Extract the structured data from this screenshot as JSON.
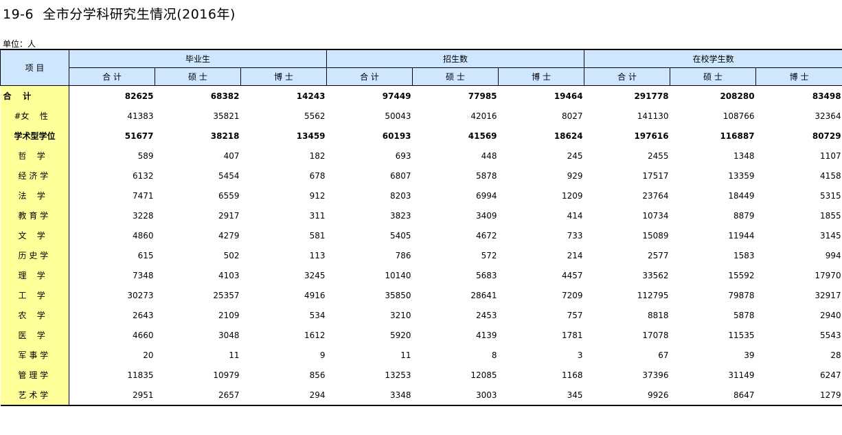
{
  "title": "19-6  全市分学科研究生情况(2016年)",
  "unit": "单位：人",
  "header": {
    "item": "项  目",
    "groups": [
      "毕业生",
      "招生数",
      "在校学生数"
    ],
    "subs": [
      "合 计",
      "硕 士",
      "博 士"
    ]
  },
  "rows": [
    {
      "label": "合    计",
      "indent": 0,
      "bold": true,
      "values": [
        "82625",
        "68382",
        "14243",
        "97449",
        "77985",
        "19464",
        "291778",
        "208280",
        "83498"
      ]
    },
    {
      "label": "#女    性",
      "indent": 16,
      "bold": false,
      "values": [
        "41383",
        "35821",
        "5562",
        "50043",
        "42016",
        "8027",
        "141130",
        "108766",
        "32364"
      ]
    },
    {
      "label": "学术型学位",
      "indent": 16,
      "bold": true,
      "values": [
        "51677",
        "38218",
        "13459",
        "60193",
        "41569",
        "18624",
        "197616",
        "116887",
        "80729"
      ]
    },
    {
      "label": "哲    学",
      "indent": 22,
      "bold": false,
      "values": [
        "589",
        "407",
        "182",
        "693",
        "448",
        "245",
        "2455",
        "1348",
        "1107"
      ]
    },
    {
      "label": "经 济 学",
      "indent": 22,
      "bold": false,
      "values": [
        "6132",
        "5454",
        "678",
        "6807",
        "5878",
        "929",
        "17517",
        "13359",
        "4158"
      ]
    },
    {
      "label": "法    学",
      "indent": 22,
      "bold": false,
      "values": [
        "7471",
        "6559",
        "912",
        "8203",
        "6994",
        "1209",
        "23764",
        "18449",
        "5315"
      ]
    },
    {
      "label": "教 育 学",
      "indent": 22,
      "bold": false,
      "values": [
        "3228",
        "2917",
        "311",
        "3823",
        "3409",
        "414",
        "10734",
        "8879",
        "1855"
      ]
    },
    {
      "label": "文    学",
      "indent": 22,
      "bold": false,
      "values": [
        "4860",
        "4279",
        "581",
        "5405",
        "4672",
        "733",
        "15089",
        "11944",
        "3145"
      ]
    },
    {
      "label": "历 史 学",
      "indent": 22,
      "bold": false,
      "values": [
        "615",
        "502",
        "113",
        "786",
        "572",
        "214",
        "2577",
        "1583",
        "994"
      ]
    },
    {
      "label": "理    学",
      "indent": 22,
      "bold": false,
      "values": [
        "7348",
        "4103",
        "3245",
        "10140",
        "5683",
        "4457",
        "33562",
        "15592",
        "17970"
      ]
    },
    {
      "label": "工    学",
      "indent": 22,
      "bold": false,
      "values": [
        "30273",
        "25357",
        "4916",
        "35850",
        "28641",
        "7209",
        "112795",
        "79878",
        "32917"
      ]
    },
    {
      "label": "农    学",
      "indent": 22,
      "bold": false,
      "values": [
        "2643",
        "2109",
        "534",
        "3210",
        "2453",
        "757",
        "8818",
        "5878",
        "2940"
      ]
    },
    {
      "label": "医    学",
      "indent": 22,
      "bold": false,
      "values": [
        "4660",
        "3048",
        "1612",
        "5920",
        "4139",
        "1781",
        "17078",
        "11535",
        "5543"
      ]
    },
    {
      "label": "军 事 学",
      "indent": 22,
      "bold": false,
      "values": [
        "20",
        "11",
        "9",
        "11",
        "8",
        "3",
        "67",
        "39",
        "28"
      ]
    },
    {
      "label": "管 理 学",
      "indent": 22,
      "bold": false,
      "values": [
        "11835",
        "10979",
        "856",
        "13253",
        "12085",
        "1168",
        "37396",
        "31149",
        "6247"
      ]
    },
    {
      "label": "艺 术 学",
      "indent": 22,
      "bold": false,
      "values": [
        "2951",
        "2657",
        "294",
        "3348",
        "3003",
        "345",
        "9926",
        "8647",
        "1279"
      ]
    }
  ]
}
